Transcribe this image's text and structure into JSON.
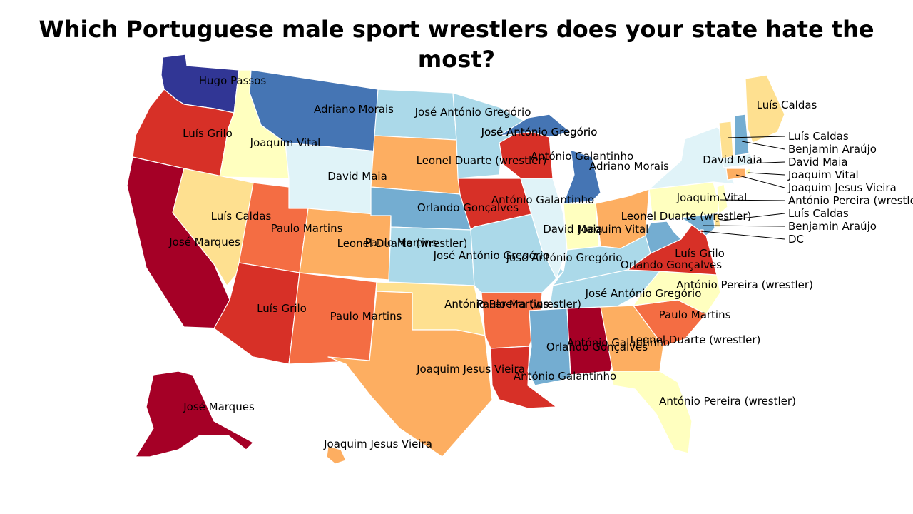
{
  "title": "Which Portuguese male sport wrestlers does your state hate the most?",
  "colors": {
    "darkred": "#a50026",
    "red": "#d73027",
    "orange_red": "#f46d43",
    "orange": "#fdae61",
    "light_orange": "#fee090",
    "pale_yellow": "#ffffbf",
    "pale_cyan": "#e0f3f8",
    "light_blue": "#abd9e9",
    "mid_blue": "#74add1",
    "blue": "#4575b4",
    "dark_blue": "#313695"
  },
  "states": {
    "WA": "Hugo Passos",
    "OR": "Luís Grilo",
    "CA": "José Marques",
    "ID": "Joaquim Vital",
    "NV": "Luís Caldas",
    "MT": "Adriano Morais",
    "WY": "David Maia",
    "UT": "Paulo Martins",
    "AZ": "Luís Grilo",
    "CO": "Paulo Martins",
    "NM": "Paulo Martins",
    "ND": "José António Gregório",
    "SD": "Leonel Duarte (wrestler)",
    "NE": "Orlando Gonçalves",
    "KS": "Leonel Duarte (wrestler)",
    "OK": "António Pereira (wrestler)",
    "TX": "Joaquim Jesus Vieira",
    "MN": "José António Gregório",
    "IA": "António Galantinho",
    "MO": "José António Gregório",
    "AR": "Paulo Martins",
    "LA": "António Galantinho",
    "WI": "António Galantinho",
    "MI": "Adriano Morais",
    "MI_UP": "José António Gregório",
    "IL": "David Maia",
    "IN": "Joaquim Vital",
    "OH": "Leonel Duarte (wrestler)",
    "KY": "José António Gregório",
    "TN": "José António Gregório",
    "MS": "Orlando Gonçalves",
    "AL": "António Galantinho",
    "GA": "Leonel Duarte (wrestler)",
    "FL": "António Pereira (wrestler)",
    "SC": "Paulo Martins",
    "NC": "António Pereira (wrestler)",
    "VA": "Luís Grilo",
    "WV": "Orlando Gonçalves",
    "PA": "Joaquim Vital",
    "NY": "David Maia",
    "ME": "Luís Caldas",
    "AK": "José Marques",
    "HI": "Joaquim Jesus Vieira"
  },
  "callouts": [
    {
      "state": "VT",
      "label": "Luís Caldas"
    },
    {
      "state": "NH",
      "label": "Benjamin Araújo"
    },
    {
      "state": "MA",
      "label": "David Maia"
    },
    {
      "state": "RI",
      "label": "Joaquim Vital"
    },
    {
      "state": "CT",
      "label": "Joaquim Jesus Vieira"
    },
    {
      "state": "NJ",
      "label": "António Pereira (wrestler)"
    },
    {
      "state": "DE",
      "label": "Luís Caldas"
    },
    {
      "state": "MD",
      "label": "Benjamin Araújo"
    },
    {
      "state": "DC",
      "label": "DC"
    }
  ]
}
